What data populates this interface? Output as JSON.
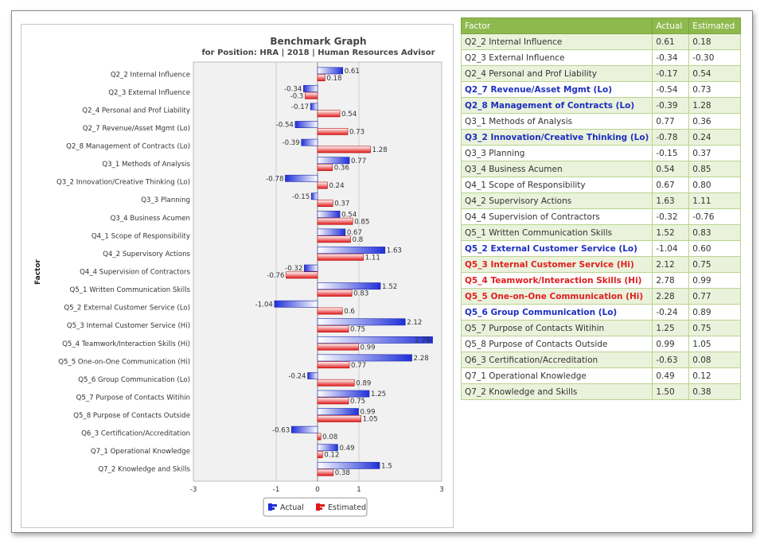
{
  "chart_data": {
    "type": "bar",
    "orientation": "horizontal",
    "title": "Benchmark Graph",
    "subtitle": "for Position: HRA | 2018 | Human Resources Advisor",
    "ylabel": "Factor",
    "xlim": [
      -3,
      3
    ],
    "x_ticks": [
      "-3",
      "-1",
      "0",
      "1",
      "3"
    ],
    "grid": true,
    "legend_position": "bottom",
    "categories": [
      "Q2_2 Internal Influence",
      "Q2_3 External Influence",
      "Q2_4 Personal and Prof Liability",
      "Q2_7 Revenue/Asset Mgmt (Lo)",
      "Q2_8 Management of Contracts (Lo)",
      "Q3_1 Methods of Analysis",
      "Q3_2 Innovation/Creative Thinking (Lo)",
      "Q3_3 Planning",
      "Q3_4 Business Acumen",
      "Q4_1 Scope of Responsibility",
      "Q4_2 Supervisory Actions",
      "Q4_4 Supervision of Contractors",
      "Q5_1 Written Communication Skills",
      "Q5_2 External Customer Service (Lo)",
      "Q5_3 Internal Customer Service (Hi)",
      "Q5_4 Teamwork/Interaction Skills (Hi)",
      "Q5_5 One-on-One Communication (Hi)",
      "Q5_6 Group Communication (Lo)",
      "Q5_7 Purpose of Contacts Witihin",
      "Q5_8 Purpose of Contacts Outside",
      "Q6_3 Certification/Accreditation",
      "Q7_1 Operational Knowledge",
      "Q7_2 Knowledge and Skills"
    ],
    "series": [
      {
        "name": "Actual",
        "color": "#1f2fd8",
        "values": [
          0.61,
          -0.34,
          -0.17,
          -0.54,
          -0.39,
          0.77,
          -0.78,
          -0.15,
          0.54,
          0.67,
          1.63,
          -0.32,
          1.52,
          -1.04,
          2.12,
          2.78,
          2.28,
          -0.24,
          1.25,
          0.99,
          -0.63,
          0.49,
          1.5
        ],
        "data_labels": [
          "0.61",
          "-0.34",
          "-0.17",
          "-0.54",
          "-0.39",
          "0.77",
          "-0.78",
          "-0.15",
          "0.54",
          "0.67",
          "1.63",
          "-0.32",
          "1.52",
          "-1.04",
          "2.12",
          "2.78",
          "2.28",
          "-0.24",
          "1.25",
          "0.99",
          "-0.63",
          "0.49",
          "1.5"
        ]
      },
      {
        "name": "Estimated",
        "color": "#e01818",
        "values": [
          0.18,
          -0.3,
          0.54,
          0.73,
          1.28,
          0.36,
          0.24,
          0.37,
          0.85,
          0.8,
          1.11,
          -0.76,
          0.83,
          0.6,
          0.75,
          0.99,
          0.77,
          0.89,
          0.75,
          1.05,
          0.08,
          0.12,
          0.38
        ],
        "data_labels": [
          "0.18",
          "-0.3",
          "0.54",
          "0.73",
          "1.28",
          "0.36",
          "0.24",
          "0.37",
          "0.85",
          "0.8",
          "1.11",
          "-0.76",
          "0.83",
          "0.6",
          "0.75",
          "0.99",
          "0.77",
          "0.89",
          "0.75",
          "1.05",
          "0.08",
          "0.12",
          "0.38"
        ]
      }
    ]
  },
  "table": {
    "headers": [
      "Factor",
      "Actual",
      "Estimated"
    ],
    "rows": [
      {
        "factor": "Q2_2 Internal Influence",
        "actual": "0.61",
        "estimated": "0.18",
        "style": "normal"
      },
      {
        "factor": "Q2_3 External Influence",
        "actual": "-0.34",
        "estimated": "-0.30",
        "style": "normal"
      },
      {
        "factor": "Q2_4 Personal and Prof Liability",
        "actual": "-0.17",
        "estimated": "0.54",
        "style": "normal"
      },
      {
        "factor": "Q2_7 Revenue/Asset Mgmt (Lo)",
        "actual": "-0.54",
        "estimated": "0.73",
        "style": "blue"
      },
      {
        "factor": "Q2_8 Management of Contracts (Lo)",
        "actual": "-0.39",
        "estimated": "1.28",
        "style": "blue"
      },
      {
        "factor": "Q3_1 Methods of Analysis",
        "actual": "0.77",
        "estimated": "0.36",
        "style": "normal"
      },
      {
        "factor": "Q3_2 Innovation/Creative Thinking (Lo)",
        "actual": "-0.78",
        "estimated": "0.24",
        "style": "blue"
      },
      {
        "factor": "Q3_3 Planning",
        "actual": "-0.15",
        "estimated": "0.37",
        "style": "normal"
      },
      {
        "factor": "Q3_4 Business Acumen",
        "actual": "0.54",
        "estimated": "0.85",
        "style": "normal"
      },
      {
        "factor": "Q4_1 Scope of Responsibility",
        "actual": "0.67",
        "estimated": "0.80",
        "style": "normal"
      },
      {
        "factor": "Q4_2 Supervisory Actions",
        "actual": "1.63",
        "estimated": "1.11",
        "style": "normal"
      },
      {
        "factor": "Q4_4 Supervision of Contractors",
        "actual": "-0.32",
        "estimated": "-0.76",
        "style": "normal"
      },
      {
        "factor": "Q5_1 Written Communication Skills",
        "actual": "1.52",
        "estimated": "0.83",
        "style": "normal"
      },
      {
        "factor": "Q5_2 External Customer Service (Lo)",
        "actual": "-1.04",
        "estimated": "0.60",
        "style": "blue"
      },
      {
        "factor": "Q5_3 Internal Customer Service (Hi)",
        "actual": "2.12",
        "estimated": "0.75",
        "style": "red"
      },
      {
        "factor": "Q5_4 Teamwork/Interaction Skills (Hi)",
        "actual": "2.78",
        "estimated": "0.99",
        "style": "red"
      },
      {
        "factor": "Q5_5 One-on-One Communication (Hi)",
        "actual": "2.28",
        "estimated": "0.77",
        "style": "red"
      },
      {
        "factor": "Q5_6 Group Communication (Lo)",
        "actual": "-0.24",
        "estimated": "0.89",
        "style": "blue"
      },
      {
        "factor": "Q5_7 Purpose of Contacts Witihin",
        "actual": "1.25",
        "estimated": "0.75",
        "style": "normal"
      },
      {
        "factor": "Q5_8 Purpose of Contacts Outside",
        "actual": "0.99",
        "estimated": "1.05",
        "style": "normal"
      },
      {
        "factor": "Q6_3 Certification/Accreditation",
        "actual": "-0.63",
        "estimated": "0.08",
        "style": "normal"
      },
      {
        "factor": "Q7_1 Operational Knowledge",
        "actual": "0.49",
        "estimated": "0.12",
        "style": "normal"
      },
      {
        "factor": "Q7_2 Knowledge and Skills",
        "actual": "1.50",
        "estimated": "0.38",
        "style": "normal"
      }
    ]
  }
}
